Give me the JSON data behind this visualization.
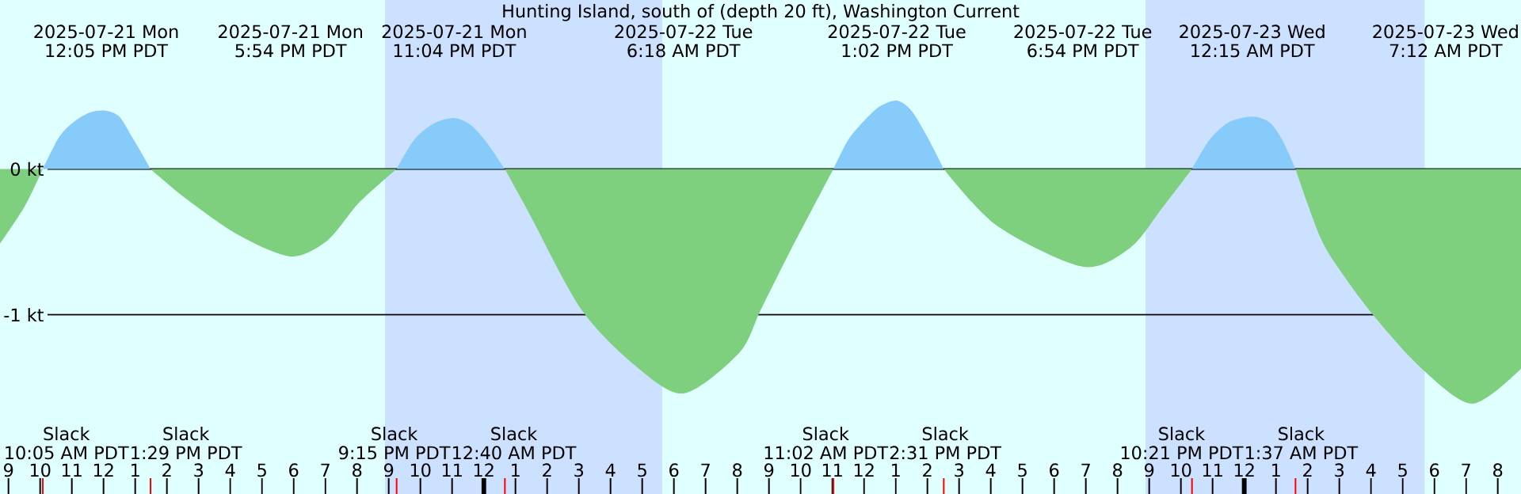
{
  "chart_data": {
    "type": "area",
    "title": "Hunting Island, south of (depth 20 ft), Washington Current",
    "xlim": [
      "2025-07-21T08:44",
      "2025-07-23T08:44"
    ],
    "ylim": [
      -2.23,
      1.16
    ],
    "xticks": [
      {
        "value": "2025-07-21T09:00",
        "label": "9"
      },
      {
        "value": "2025-07-21T10:00",
        "label": "10"
      },
      {
        "value": "2025-07-21T11:00",
        "label": "11"
      },
      {
        "value": "2025-07-21T12:00",
        "label": "12"
      },
      {
        "value": "2025-07-21T13:00",
        "label": "1"
      },
      {
        "value": "2025-07-21T14:00",
        "label": "2"
      },
      {
        "value": "2025-07-21T15:00",
        "label": "3"
      },
      {
        "value": "2025-07-21T16:00",
        "label": "4"
      },
      {
        "value": "2025-07-21T17:00",
        "label": "5"
      },
      {
        "value": "2025-07-21T18:00",
        "label": "6"
      },
      {
        "value": "2025-07-21T19:00",
        "label": "7"
      },
      {
        "value": "2025-07-21T20:00",
        "label": "8"
      },
      {
        "value": "2025-07-21T21:00",
        "label": "9"
      },
      {
        "value": "2025-07-21T22:00",
        "label": "10"
      },
      {
        "value": "2025-07-21T23:00",
        "label": "11"
      },
      {
        "value": "2025-07-22T00:00",
        "label": "12"
      },
      {
        "value": "2025-07-22T01:00",
        "label": "1"
      },
      {
        "value": "2025-07-22T02:00",
        "label": "2"
      },
      {
        "value": "2025-07-22T03:00",
        "label": "3"
      },
      {
        "value": "2025-07-22T04:00",
        "label": "4"
      },
      {
        "value": "2025-07-22T05:00",
        "label": "5"
      },
      {
        "value": "2025-07-22T06:00",
        "label": "6"
      },
      {
        "value": "2025-07-22T07:00",
        "label": "7"
      },
      {
        "value": "2025-07-22T08:00",
        "label": "8"
      },
      {
        "value": "2025-07-22T09:00",
        "label": "9"
      },
      {
        "value": "2025-07-22T10:00",
        "label": "10"
      },
      {
        "value": "2025-07-22T11:00",
        "label": "11"
      },
      {
        "value": "2025-07-22T12:00",
        "label": "12"
      },
      {
        "value": "2025-07-22T13:00",
        "label": "1"
      },
      {
        "value": "2025-07-22T14:00",
        "label": "2"
      },
      {
        "value": "2025-07-22T15:00",
        "label": "3"
      },
      {
        "value": "2025-07-22T16:00",
        "label": "4"
      },
      {
        "value": "2025-07-22T17:00",
        "label": "5"
      },
      {
        "value": "2025-07-22T18:00",
        "label": "6"
      },
      {
        "value": "2025-07-22T19:00",
        "label": "7"
      },
      {
        "value": "2025-07-22T20:00",
        "label": "8"
      },
      {
        "value": "2025-07-22T21:00",
        "label": "9"
      },
      {
        "value": "2025-07-22T22:00",
        "label": "10"
      },
      {
        "value": "2025-07-22T23:00",
        "label": "11"
      },
      {
        "value": "2025-07-23T00:00",
        "label": "12"
      },
      {
        "value": "2025-07-23T01:00",
        "label": "1"
      },
      {
        "value": "2025-07-23T02:00",
        "label": "2"
      },
      {
        "value": "2025-07-23T03:00",
        "label": "3"
      },
      {
        "value": "2025-07-23T04:00",
        "label": "4"
      },
      {
        "value": "2025-07-23T05:00",
        "label": "5"
      },
      {
        "value": "2025-07-23T06:00",
        "label": "6"
      },
      {
        "value": "2025-07-23T07:00",
        "label": "7"
      },
      {
        "value": "2025-07-23T08:00",
        "label": "8"
      }
    ],
    "yticks": [
      {
        "value": 0,
        "label": "0 kt"
      },
      {
        "value": -1,
        "label": "-1 kt"
      }
    ],
    "grid": "y",
    "bands": [
      {
        "axis": "x",
        "from": "2025-07-21T20:53",
        "to": "2025-07-22T05:38",
        "color": "#cce0ff"
      },
      {
        "axis": "x",
        "from": "2025-07-22T20:53",
        "to": "2025-07-23T05:42",
        "color": "#cce0ff"
      }
    ],
    "series": [
      {
        "color": "#7ecf7e",
        "x": [
          "2025-07-21T08:44",
          "2025-07-21T09:30",
          "2025-07-21T10:05"
        ],
        "values": [
          -0.51,
          -0.26,
          0
        ]
      },
      {
        "color": "#87cbfa",
        "x": [
          "2025-07-21T10:05",
          "2025-07-21T10:36",
          "2025-07-21T11:06",
          "2025-07-21T11:36",
          "2025-07-21T12:05",
          "2025-07-21T12:30",
          "2025-07-21T12:54",
          "2025-07-21T13:12",
          "2025-07-21T13:29"
        ],
        "values": [
          0,
          0.22,
          0.33,
          0.39,
          0.4,
          0.36,
          0.22,
          0.11,
          0
        ]
      },
      {
        "color": "#7ecf7e",
        "x": [
          "2025-07-21T13:29",
          "2025-07-21T14:35",
          "2025-07-21T16:14",
          "2025-07-21T17:54",
          "2025-07-21T19:04",
          "2025-07-21T20:04",
          "2025-07-21T21:15"
        ],
        "values": [
          0,
          -0.2,
          -0.45,
          -0.6,
          -0.49,
          -0.23,
          0
        ]
      },
      {
        "color": "#87cbfa",
        "x": [
          "2025-07-21T21:15",
          "2025-07-21T21:48",
          "2025-07-21T22:24",
          "2025-07-21T23:04",
          "2025-07-21T23:36",
          "2025-07-22T00:06",
          "2025-07-22T00:40"
        ],
        "values": [
          0,
          0.2,
          0.31,
          0.35,
          0.3,
          0.18,
          0
        ]
      },
      {
        "color": "#7ecf7e",
        "x": [
          "2025-07-22T00:40",
          "2025-07-22T01:24",
          "2025-07-22T03:04",
          "2025-07-22T04:44",
          "2025-07-22T06:18",
          "2025-07-22T08:04",
          "2025-07-22T08:44",
          "2025-07-22T09:42",
          "2025-07-22T11:02"
        ],
        "values": [
          0,
          -0.29,
          -0.96,
          -1.34,
          -1.54,
          -1.26,
          -0.97,
          -0.55,
          0
        ]
      },
      {
        "color": "#87cbfa",
        "x": [
          "2025-07-22T11:02",
          "2025-07-22T11:30",
          "2025-07-22T12:00",
          "2025-07-22T12:30",
          "2025-07-22T13:02",
          "2025-07-22T13:30",
          "2025-07-22T14:00",
          "2025-07-22T14:31"
        ],
        "values": [
          0,
          0.2,
          0.33,
          0.43,
          0.47,
          0.4,
          0.22,
          0
        ]
      },
      {
        "color": "#7ecf7e",
        "x": [
          "2025-07-22T14:31",
          "2025-07-22T16:12",
          "2025-07-22T18:54",
          "2025-07-22T20:24",
          "2025-07-22T21:24",
          "2025-07-22T22:21"
        ],
        "values": [
          0,
          -0.39,
          -0.67,
          -0.54,
          -0.27,
          0
        ]
      },
      {
        "color": "#87cbfa",
        "x": [
          "2025-07-22T22:21",
          "2025-07-22T22:54",
          "2025-07-22T23:30",
          "2025-07-23T00:15",
          "2025-07-23T00:48",
          "2025-07-23T01:12",
          "2025-07-23T01:37"
        ],
        "values": [
          0,
          0.2,
          0.32,
          0.36,
          0.32,
          0.2,
          0
        ]
      },
      {
        "color": "#7ecf7e",
        "x": [
          "2025-07-23T01:37",
          "2025-07-23T02:24",
          "2025-07-23T03:06",
          "2025-07-23T04:06",
          "2025-07-23T05:36",
          "2025-07-23T07:12",
          "2025-07-23T08:44"
        ],
        "values": [
          0,
          -0.47,
          -0.72,
          -1.01,
          -1.37,
          -1.61,
          -1.37
        ]
      }
    ],
    "annotations": [
      "2025-07-21 Mon",
      "12:05 PM PDT",
      "2025-07-21 Mon",
      "5:54 PM PDT",
      "2025-07-21 Mon",
      "11:04 PM PDT",
      "2025-07-22 Tue",
      "6:18 AM PDT",
      "2025-07-22 Tue",
      "1:02 PM PDT",
      "2025-07-22 Tue",
      "6:54 PM PDT",
      "2025-07-23 Wed",
      "12:15 AM PDT",
      "2025-07-23 Wed",
      "7:12 AM PDT",
      "Slack",
      "10:05 AM PDT",
      "Slack",
      "1:29 PM PDT",
      "Slack",
      "9:15 PM PDT",
      "Slack",
      "12:40 AM PDT",
      "Slack",
      "11:02 AM PDT",
      "Slack",
      "2:31 PM PDT",
      "Slack",
      "10:21 PM PDT",
      "Slack",
      "1:37 AM PDT"
    ]
  }
}
